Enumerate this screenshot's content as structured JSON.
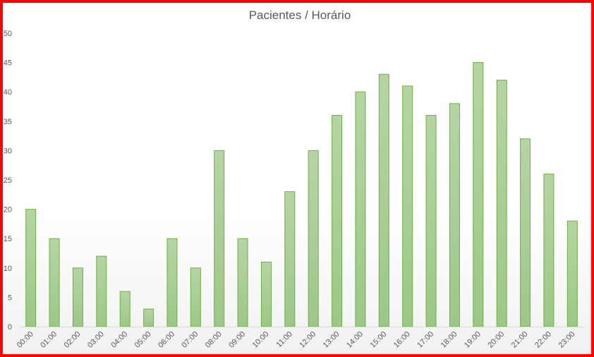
{
  "chart_data": {
    "type": "bar",
    "title": "Pacientes / Horário",
    "xlabel": "",
    "ylabel": "",
    "categories": [
      "00:00",
      "01:00",
      "02:00",
      "03:00",
      "04:00",
      "05:00",
      "06:00",
      "07:00",
      "08:00",
      "09:00",
      "10:00",
      "11:00",
      "12:00",
      "13:00",
      "14:00",
      "15:00",
      "16:00",
      "17:00",
      "18:00",
      "19:00",
      "20:00",
      "21:00",
      "22:00",
      "23:00"
    ],
    "values": [
      20,
      15,
      10,
      12,
      6,
      3,
      15,
      10,
      30,
      15,
      11,
      23,
      30,
      36,
      40,
      43,
      41,
      36,
      38,
      45,
      42,
      32,
      26,
      18
    ],
    "ylim": [
      0,
      50
    ],
    "yticks": [
      0,
      5,
      10,
      15,
      20,
      25,
      30,
      35,
      40,
      45,
      50
    ],
    "grid": false,
    "legend": "none",
    "colors": {
      "bar_fill_top": "#b5d5a3",
      "bar_fill_bottom": "#9cc887",
      "bar_stroke": "#70ad47",
      "frame_border": "#ff0000",
      "text": "#595959",
      "axis": "#d9d9d9"
    }
  }
}
